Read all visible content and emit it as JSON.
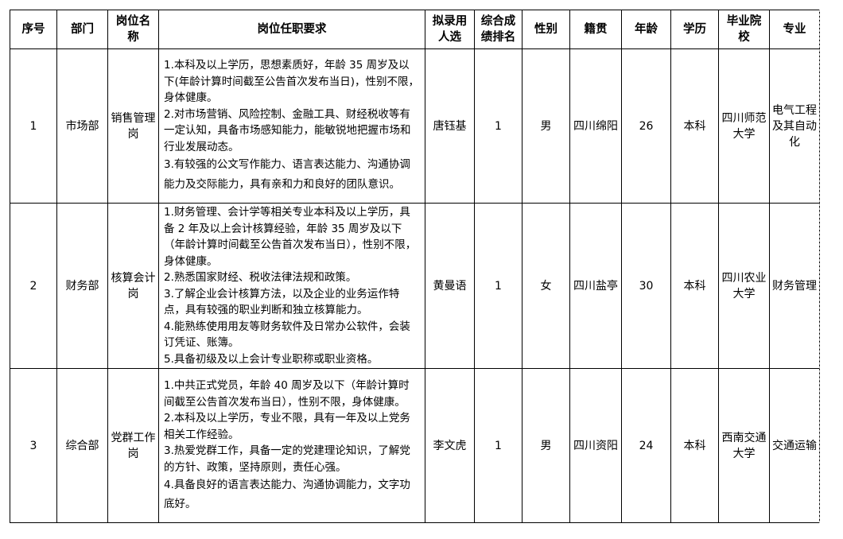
{
  "headers": [
    "序号",
    "部门",
    "岗位名称",
    "岗位任职要求",
    "拟录用人选",
    "综合成绩排名",
    "性别",
    "籍贯",
    "年龄",
    "学历",
    "毕业院校",
    "专业"
  ],
  "rows": [
    {
      "no": "1",
      "dept": "市场部",
      "position": "销售管理岗",
      "requirements": [
        "1.本科及以上学历，思想素质好，年龄 35 周岁及以下(年龄计算时间截至公告首次发布当日)，性别不限，身体健康。",
        "2.对市场营销、风险控制、金融工具、财经税收等有一定认知，具备市场感知能力，能敏锐地把握市场和行业发展动态。",
        "3.有较强的公文写作能力、语言表达能力、沟通协调能力及交际能力，具有亲和力和良好的团队意识。"
      ],
      "candidate": "唐钰基",
      "rank": "1",
      "gender": "男",
      "origin": "四川绵阳",
      "age": "26",
      "education": "本科",
      "school": "四川师范大学",
      "major": "电气工程及其自动化"
    },
    {
      "no": "2",
      "dept": "财务部",
      "position": "核算会计岗",
      "requirements": [
        "1.财务管理、会计学等相关专业本科及以上学历，具备 2 年及以上会计核算经验，年龄 35 周岁及以下（年龄计算时间截至公告首次发布当日），性别不限，身体健康。",
        "2.熟悉国家财经、税收法律法规和政策。",
        "3.了解企业会计核算方法，以及企业的业务运作特点，具有较强的职业判断和独立核算能力。",
        "4.能熟练使用用友等财务软件及日常办公软件，会装订凭证、账簿。",
        "5.具备初级及以上会计专业职称或职业资格。"
      ],
      "candidate": "黄曼语",
      "rank": "1",
      "gender": "女",
      "origin": "四川盐亭",
      "age": "30",
      "education": "本科",
      "school": "四川农业大学",
      "major": "财务管理"
    },
    {
      "no": "3",
      "dept": "综合部",
      "position": "党群工作岗",
      "requirements": [
        "1.中共正式党员，年龄 40 周岁及以下（年龄计算时间截至公告首次发布当日），性别不限，身体健康。",
        "2.本科及以上学历，专业不限，具有一年及以上党务相关工作经验。",
        "3.热爱党群工作，具备一定的党建理论知识，了解党的方针、政策，坚持原则，责任心强。",
        "4.具备良好的语言表达能力、沟通协调能力，文字功底好。"
      ],
      "candidate": "李文虎",
      "rank": "1",
      "gender": "男",
      "origin": "四川资阳",
      "age": "24",
      "education": "本科",
      "school": "西南交通大学",
      "major": "交通运输"
    }
  ]
}
